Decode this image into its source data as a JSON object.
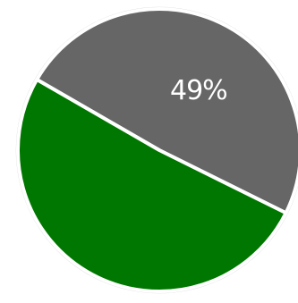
{
  "chart_data": {
    "type": "pie",
    "title": "",
    "slices": [
      {
        "label": "",
        "value": 49,
        "display": "49%",
        "color": "#666666"
      },
      {
        "label": "",
        "value": 51,
        "display": "",
        "color": "#007700"
      }
    ],
    "separator_color": "#ffffff",
    "outline_color": "#d6d6d6"
  }
}
